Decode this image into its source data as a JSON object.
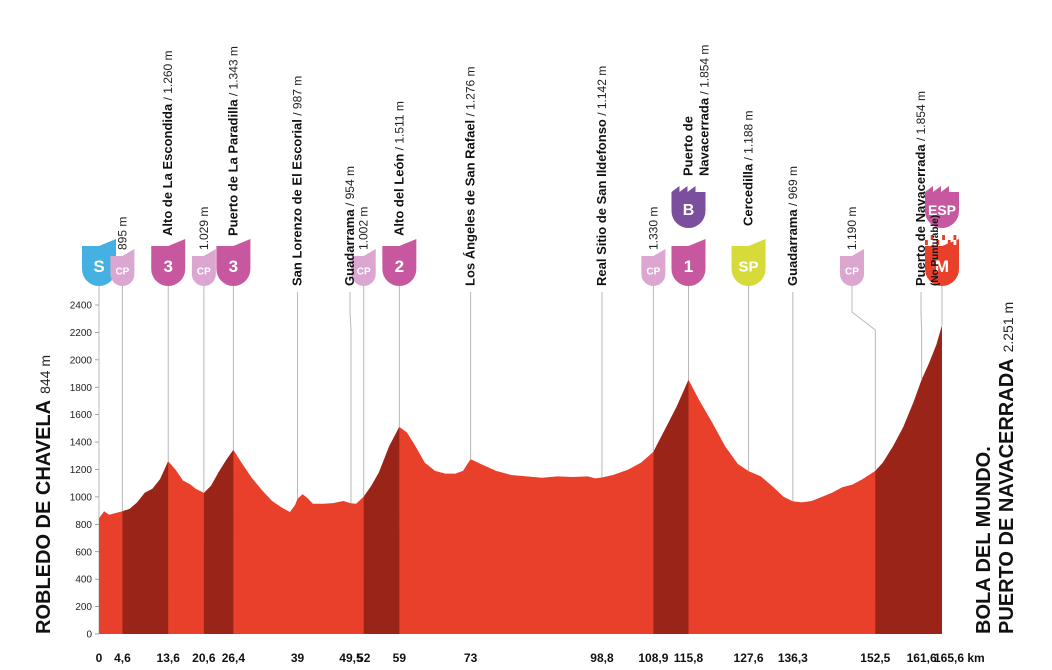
{
  "colors": {
    "profile": "#e8402a",
    "climb": "#9b2418",
    "leader": "#b8b8b8",
    "climb_badge": "#c7579f",
    "cp_badge": "#dba6d0",
    "start_badge": "#45b1e3",
    "sprint_badge": "#d6db3a",
    "bonus_badge": "#7b4e9e",
    "finish_badge": "#e8402a",
    "sp_text": "#333333"
  },
  "start": {
    "name": "ROBLEDO DE CHAVELA",
    "alt": "844 m"
  },
  "finish": {
    "name_line1": "BOLA DEL MUNDO.",
    "name_line2": "PUERTO DE NAVACERRADA",
    "alt": "2.251 m"
  },
  "chart_data": {
    "type": "area",
    "title": "",
    "xlabel": "",
    "ylabel": "",
    "x_unit": "km",
    "xlim": [
      0,
      165.6
    ],
    "ylim": [
      0,
      2400
    ],
    "yticks": [
      "0",
      "200",
      "400",
      "600",
      "800",
      "1000",
      "1200",
      "1400",
      "1600",
      "1800",
      "2000",
      "2200",
      "2400"
    ],
    "xticks": [
      "0",
      "4,6",
      "13,6",
      "20,6",
      "26,4",
      "39",
      "49,5",
      "52",
      "59",
      "73",
      "98,8",
      "108,9",
      "115,8",
      "127,6",
      "136,3",
      "152,5",
      "161,6",
      "165,6 km"
    ],
    "profile": [
      [
        0,
        844
      ],
      [
        1,
        895
      ],
      [
        2,
        870
      ],
      [
        3,
        880
      ],
      [
        4.6,
        895
      ],
      [
        6,
        912
      ],
      [
        7.5,
        960
      ],
      [
        9,
        1030
      ],
      [
        10.5,
        1060
      ],
      [
        12,
        1130
      ],
      [
        13.6,
        1260
      ],
      [
        15,
        1200
      ],
      [
        16.5,
        1120
      ],
      [
        18,
        1090
      ],
      [
        19,
        1060
      ],
      [
        20.6,
        1029
      ],
      [
        22,
        1080
      ],
      [
        23.5,
        1180
      ],
      [
        25,
        1270
      ],
      [
        26.4,
        1343
      ],
      [
        28,
        1250
      ],
      [
        30,
        1140
      ],
      [
        32,
        1050
      ],
      [
        34,
        970
      ],
      [
        36,
        920
      ],
      [
        37.5,
        890
      ],
      [
        38.5,
        940
      ],
      [
        39,
        987
      ],
      [
        40,
        1020
      ],
      [
        41,
        990
      ],
      [
        42,
        950
      ],
      [
        44,
        950
      ],
      [
        46,
        955
      ],
      [
        48,
        970
      ],
      [
        49.5,
        954
      ],
      [
        50.5,
        950
      ],
      [
        52,
        1002
      ],
      [
        53.5,
        1080
      ],
      [
        55,
        1180
      ],
      [
        57,
        1370
      ],
      [
        59,
        1511
      ],
      [
        60.5,
        1470
      ],
      [
        62,
        1380
      ],
      [
        64,
        1250
      ],
      [
        66,
        1190
      ],
      [
        68,
        1170
      ],
      [
        70,
        1170
      ],
      [
        71.5,
        1190
      ],
      [
        73,
        1276
      ],
      [
        75,
        1240
      ],
      [
        78,
        1190
      ],
      [
        81,
        1160
      ],
      [
        84,
        1150
      ],
      [
        87,
        1140
      ],
      [
        90,
        1150
      ],
      [
        93,
        1145
      ],
      [
        96,
        1150
      ],
      [
        97.5,
        1135
      ],
      [
        98.8,
        1142
      ],
      [
        101,
        1160
      ],
      [
        104,
        1200
      ],
      [
        106.5,
        1250
      ],
      [
        108.9,
        1330
      ],
      [
        111,
        1480
      ],
      [
        113.5,
        1660
      ],
      [
        115.8,
        1854
      ],
      [
        118,
        1700
      ],
      [
        120.5,
        1540
      ],
      [
        123,
        1370
      ],
      [
        125.5,
        1240
      ],
      [
        127.6,
        1188
      ],
      [
        130,
        1150
      ],
      [
        132.5,
        1070
      ],
      [
        134.5,
        1000
      ],
      [
        136.3,
        969
      ],
      [
        138,
        960
      ],
      [
        140,
        970
      ],
      [
        142,
        1000
      ],
      [
        144,
        1030
      ],
      [
        146,
        1070
      ],
      [
        148,
        1090
      ],
      [
        150,
        1130
      ],
      [
        152.5,
        1190
      ],
      [
        154,
        1250
      ],
      [
        156,
        1370
      ],
      [
        158,
        1510
      ],
      [
        160,
        1690
      ],
      [
        161.6,
        1854
      ],
      [
        163,
        1970
      ],
      [
        164.5,
        2110
      ],
      [
        165.6,
        2251
      ]
    ],
    "climbs": [
      [
        4.6,
        13.6
      ],
      [
        20.6,
        26.4
      ],
      [
        52,
        59
      ],
      [
        108.9,
        115.8
      ],
      [
        152.5,
        165.6
      ]
    ],
    "points": [
      {
        "km": "0",
        "type": "start",
        "badge": "S",
        "name": "",
        "alt": ""
      },
      {
        "km": "4,6",
        "type": "cp",
        "badge": "CP",
        "name": "",
        "alt": "895 m"
      },
      {
        "km": "13,6",
        "type": "climb",
        "badge": "3",
        "name": "Alto de La Escondida",
        "alt": " / 1.260 m"
      },
      {
        "km": "20,6",
        "type": "cp",
        "badge": "CP",
        "name": "",
        "alt": "1.029 m"
      },
      {
        "km": "26,4",
        "type": "climb",
        "badge": "3",
        "name": "Puerto de La Paradilla",
        "alt": " / 1.343 m"
      },
      {
        "km": "39",
        "type": "town",
        "badge": "",
        "name": "San Lorenzo de El Escorial",
        "alt": " / 987 m"
      },
      {
        "km": "49,5",
        "type": "town",
        "badge": "",
        "name": "Guadarrama",
        "alt": " / 954 m"
      },
      {
        "km": "52",
        "type": "cp",
        "badge": "CP",
        "name": "",
        "alt": "1.002 m"
      },
      {
        "km": "59",
        "type": "climb",
        "badge": "2",
        "name": "Alto del León",
        "alt": " / 1.511 m"
      },
      {
        "km": "73",
        "type": "town",
        "badge": "",
        "name": "Los Ángeles de San Rafael",
        "alt": " / 1.276 m"
      },
      {
        "km": "98,8",
        "type": "town",
        "badge": "",
        "name": "Real Sitio de San Ildefonso",
        "alt": " / 1.142 m"
      },
      {
        "km": "108,9",
        "type": "cp",
        "badge": "CP",
        "name": "",
        "alt": "1.330 m"
      },
      {
        "km": "115,8",
        "type": "climb",
        "badge": "1",
        "bonus": "B",
        "name": "Puerto de",
        "name2": "Navacerrada",
        "alt": " / 1.854 m"
      },
      {
        "km": "127,6",
        "type": "sprint",
        "badge": "SP",
        "name": "Cercedilla",
        "alt": " / 1.188 m"
      },
      {
        "km": "136,3",
        "type": "town",
        "badge": "",
        "name": "Guadarrama",
        "alt": " / 969 m"
      },
      {
        "km": "152,5",
        "type": "cp",
        "badge": "CP",
        "name": "",
        "alt": "1.190 m"
      },
      {
        "km": "161,6",
        "type": "town",
        "badge": "",
        "name": "Puerto de Navacerrada",
        "alt": " / 1.854 m",
        "note": "(No Puntuable)"
      },
      {
        "km": "165,6",
        "type": "finish",
        "badge": "M",
        "bonus": "ESP",
        "name": "",
        "alt": ""
      }
    ]
  }
}
